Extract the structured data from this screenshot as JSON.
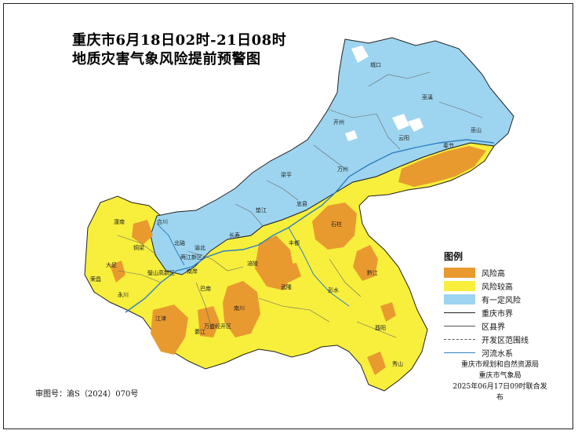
{
  "title": {
    "line1": "重庆市6月18日02时-21日08时",
    "line2": "地质灾害气象风险提前预警图"
  },
  "legend": {
    "title": "图例",
    "items": [
      {
        "label": "风险高",
        "kind": "fill",
        "color": "#e99a2f"
      },
      {
        "label": "风险较高",
        "kind": "fill",
        "color": "#f7ef3c"
      },
      {
        "label": "有一定风险",
        "kind": "fill",
        "color": "#9dd5f0"
      },
      {
        "label": "重庆市界",
        "kind": "line",
        "color": "#222222",
        "style": "solid"
      },
      {
        "label": "区县界",
        "kind": "line",
        "color": "#555555",
        "style": "solid"
      },
      {
        "label": "开发区范围线",
        "kind": "line",
        "color": "#555555",
        "style": "dashed"
      },
      {
        "label": "河流水系",
        "kind": "line",
        "color": "#2f7fc1",
        "style": "solid"
      }
    ]
  },
  "source": {
    "line1": "重庆市规划和自然资源局",
    "line2": "重庆市气象局",
    "line3": "2025年06月17日09时联合发布"
  },
  "review_number": "审图号：渝S（2024）070号",
  "place_names": {
    "chengkou": "城口",
    "wuxi": "巫溪",
    "kaizhou": "开州",
    "yunyang": "云阳",
    "fengjie": "奉节",
    "wushan": "巫山",
    "wanzhou": "万州",
    "liangping": "梁平",
    "dianjiang": "垫江",
    "zhongxian": "忠县",
    "shizhu": "石柱",
    "changshou": "长寿",
    "fengdu": "丰都",
    "fuling": "涪陵",
    "wulong": "武隆",
    "pengshui": "彭水",
    "qianjiang": "黔江",
    "youyang": "酉阳",
    "xiushan": "秀山",
    "hechuan": "合川",
    "tongliang": "铜梁",
    "dazu": "大足",
    "rongchang": "荣昌",
    "yongchuan": "永川",
    "bishan": "璧山",
    "beibei": "北碚",
    "yubei": "渝北",
    "liangjiang": "两江新区",
    "jiangjin": "江津",
    "qijiang": "綦江",
    "nanchuan": "南川",
    "banan": "巴南",
    "wansheng": "万盛经开区",
    "tongnan": "潼南",
    "xinqu": "高新区",
    "nanan": "南岸"
  }
}
